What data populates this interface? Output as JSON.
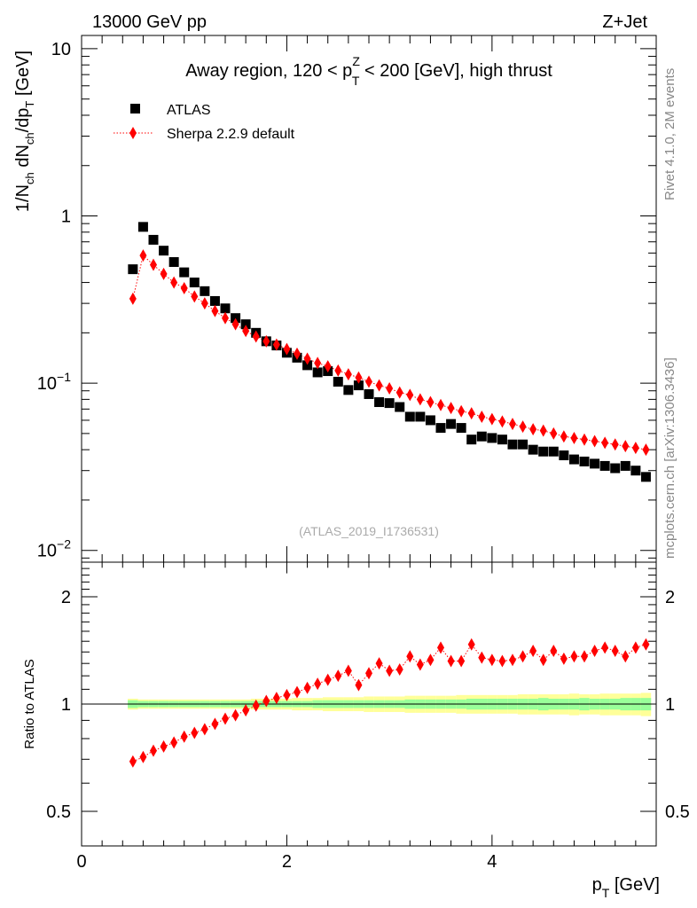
{
  "header": {
    "left": "13000 GeV pp",
    "right": "Z+Jet"
  },
  "side": {
    "rivet": "Rivet 4.1.0,  2M events",
    "mcplots": "mcplots.cern.ch [arXiv:1306.3436]"
  },
  "analysis_id": "(ATLAS_2019_I1736531)",
  "colors": {
    "data": "#000000",
    "mc": "#ff0000",
    "band_inner": "#99ff99",
    "band_outer": "#ffff99",
    "side_text": "#888888"
  },
  "chart_data": [
    {
      "type": "scatter",
      "panel": "main",
      "title": "Away region, 120 < p_T^Z < 200 [GeV], high thrust",
      "title_parts": {
        "pre": "Away region, 120 < p",
        "sup": "Z",
        "sub": "T",
        "post": " < 200 [GeV], high thrust"
      },
      "ylabel": "1/N_ch dN_ch/dp_T [GeV]",
      "ylabel_parts": {
        "a": "1/N",
        "b": "ch",
        "c": " dN",
        "d": "ch",
        "e": "/dp",
        "f": "T",
        "g": " [GeV]"
      },
      "yscale": "log",
      "ylim": [
        0.0085,
        12
      ],
      "xlim": [
        0,
        5.6
      ],
      "ytick_labels": [
        {
          "value": 10,
          "base": "10",
          "exp": ""
        },
        {
          "value": 1,
          "base": "1",
          "exp": ""
        },
        {
          "value": 0.1,
          "base": "10",
          "exp": "−1"
        },
        {
          "value": 0.01,
          "base": "10",
          "exp": "−2"
        }
      ],
      "legend_position": "top-left",
      "x": [
        0.5,
        0.6,
        0.7,
        0.8,
        0.9,
        1.0,
        1.1,
        1.2,
        1.3,
        1.4,
        1.5,
        1.6,
        1.7,
        1.8,
        1.9,
        2.0,
        2.1,
        2.2,
        2.3,
        2.4,
        2.5,
        2.6,
        2.7,
        2.8,
        2.9,
        3.0,
        3.1,
        3.2,
        3.3,
        3.4,
        3.5,
        3.6,
        3.7,
        3.8,
        3.9,
        4.0,
        4.1,
        4.2,
        4.3,
        4.4,
        4.5,
        4.6,
        4.7,
        4.8,
        4.9,
        5.0,
        5.1,
        5.2,
        5.3,
        5.4,
        5.5
      ],
      "series": [
        {
          "name": "ATLAS",
          "marker": "square",
          "values": [
            0.48,
            0.86,
            0.72,
            0.62,
            0.53,
            0.46,
            0.4,
            0.355,
            0.31,
            0.28,
            0.245,
            0.225,
            0.2,
            0.178,
            0.168,
            0.152,
            0.142,
            0.128,
            0.116,
            0.118,
            0.102,
            0.091,
            0.097,
            0.086,
            0.077,
            0.076,
            0.072,
            0.063,
            0.063,
            0.06,
            0.054,
            0.057,
            0.054,
            0.046,
            0.048,
            0.047,
            0.046,
            0.043,
            0.043,
            0.04,
            0.039,
            0.039,
            0.037,
            0.035,
            0.034,
            0.033,
            0.032,
            0.031,
            0.032,
            0.03,
            0.0275
          ]
        },
        {
          "name": "Sherpa 2.2.9 default",
          "marker": "diamond",
          "line": "dotted",
          "values": [
            0.32,
            0.58,
            0.51,
            0.45,
            0.4,
            0.37,
            0.33,
            0.3,
            0.27,
            0.245,
            0.225,
            0.205,
            0.19,
            0.178,
            0.17,
            0.16,
            0.15,
            0.14,
            0.132,
            0.126,
            0.119,
            0.113,
            0.108,
            0.102,
            0.097,
            0.093,
            0.088,
            0.085,
            0.08,
            0.077,
            0.074,
            0.071,
            0.068,
            0.066,
            0.063,
            0.061,
            0.059,
            0.057,
            0.055,
            0.053,
            0.052,
            0.05,
            0.048,
            0.047,
            0.046,
            0.045,
            0.044,
            0.043,
            0.042,
            0.041,
            0.04
          ]
        }
      ]
    },
    {
      "type": "scatter",
      "panel": "ratio",
      "xlabel": "p_T [GeV]",
      "xlabel_parts": {
        "a": "p",
        "b": "T",
        "c": " [GeV]"
      },
      "ylabel": "Ratio to ATLAS",
      "yscale": "log",
      "ylim": [
        0.4,
        2.5
      ],
      "xlim": [
        0,
        5.6
      ],
      "yticks": [
        0.5,
        1,
        2
      ],
      "ytick_labels": [
        "0.5",
        "1",
        "2"
      ],
      "xticks": [
        0,
        2,
        4
      ],
      "xtick_labels": [
        "0",
        "2",
        "4"
      ],
      "reference_line": 1,
      "x": [
        0.5,
        0.6,
        0.7,
        0.8,
        0.9,
        1.0,
        1.1,
        1.2,
        1.3,
        1.4,
        1.5,
        1.6,
        1.7,
        1.8,
        1.9,
        2.0,
        2.1,
        2.2,
        2.3,
        2.4,
        2.5,
        2.6,
        2.7,
        2.8,
        2.9,
        3.0,
        3.1,
        3.2,
        3.3,
        3.4,
        3.5,
        3.6,
        3.7,
        3.8,
        3.9,
        4.0,
        4.1,
        4.2,
        4.3,
        4.4,
        4.5,
        4.6,
        4.7,
        4.8,
        4.9,
        5.0,
        5.1,
        5.2,
        5.3,
        5.4,
        5.5
      ],
      "series": [
        {
          "name": "Sherpa 2.2.9 default / ATLAS",
          "marker": "diamond",
          "line": "dotted",
          "values": [
            0.69,
            0.71,
            0.74,
            0.76,
            0.78,
            0.81,
            0.83,
            0.85,
            0.88,
            0.91,
            0.93,
            0.96,
            0.99,
            1.02,
            1.04,
            1.06,
            1.08,
            1.11,
            1.14,
            1.17,
            1.2,
            1.24,
            1.13,
            1.22,
            1.3,
            1.24,
            1.25,
            1.36,
            1.29,
            1.33,
            1.44,
            1.32,
            1.32,
            1.47,
            1.35,
            1.33,
            1.32,
            1.33,
            1.36,
            1.41,
            1.33,
            1.41,
            1.34,
            1.36,
            1.36,
            1.41,
            1.44,
            1.41,
            1.36,
            1.44,
            1.47
          ]
        }
      ],
      "band": {
        "inner_halfwidth": [
          0.025,
          0.02,
          0.02,
          0.02,
          0.02,
          0.02,
          0.02,
          0.02,
          0.02,
          0.02,
          0.02,
          0.02,
          0.02,
          0.02,
          0.02,
          0.02,
          0.02,
          0.02,
          0.025,
          0.025,
          0.025,
          0.025,
          0.025,
          0.025,
          0.025,
          0.025,
          0.025,
          0.03,
          0.03,
          0.03,
          0.03,
          0.03,
          0.03,
          0.035,
          0.035,
          0.035,
          0.035,
          0.035,
          0.035,
          0.035,
          0.04,
          0.035,
          0.035,
          0.035,
          0.04,
          0.035,
          0.035,
          0.035,
          0.04,
          0.04,
          0.04
        ],
        "outer_halfwidth": [
          0.035,
          0.03,
          0.03,
          0.03,
          0.03,
          0.03,
          0.03,
          0.03,
          0.03,
          0.03,
          0.03,
          0.03,
          0.035,
          0.035,
          0.035,
          0.035,
          0.04,
          0.04,
          0.04,
          0.045,
          0.045,
          0.045,
          0.045,
          0.05,
          0.05,
          0.05,
          0.05,
          0.055,
          0.055,
          0.055,
          0.055,
          0.055,
          0.06,
          0.06,
          0.06,
          0.06,
          0.06,
          0.06,
          0.065,
          0.065,
          0.065,
          0.065,
          0.065,
          0.07,
          0.065,
          0.065,
          0.07,
          0.07,
          0.07,
          0.07,
          0.075
        ]
      }
    }
  ]
}
